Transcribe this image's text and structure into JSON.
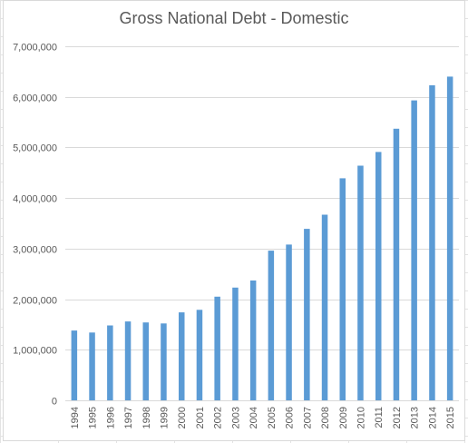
{
  "chart_data": {
    "type": "bar",
    "title": "Gross National Debt - Domestic",
    "xlabel": "",
    "ylabel": "",
    "ylim": [
      0,
      7000000
    ],
    "yticks": [
      0,
      1000000,
      2000000,
      3000000,
      4000000,
      5000000,
      6000000,
      7000000
    ],
    "ytick_labels": [
      "0",
      "1,000,000",
      "2,000,000",
      "3,000,000",
      "4,000,000",
      "5,000,000",
      "6,000,000",
      "7,000,000"
    ],
    "categories": [
      "1994",
      "1995",
      "1996",
      "1997",
      "1998",
      "1999",
      "2000",
      "2001",
      "2002",
      "2003",
      "2004",
      "2005",
      "2006",
      "2007",
      "2008",
      "2009",
      "2010",
      "2011",
      "2012",
      "2013",
      "2014",
      "2015"
    ],
    "values": [
      1380000,
      1340000,
      1480000,
      1560000,
      1540000,
      1520000,
      1740000,
      1790000,
      2050000,
      2230000,
      2370000,
      2960000,
      3080000,
      3390000,
      3670000,
      4390000,
      4640000,
      4910000,
      5370000,
      5930000,
      6230000,
      6400000
    ],
    "bar_color": "#5b9bd5",
    "grid": true,
    "legend": "none"
  }
}
